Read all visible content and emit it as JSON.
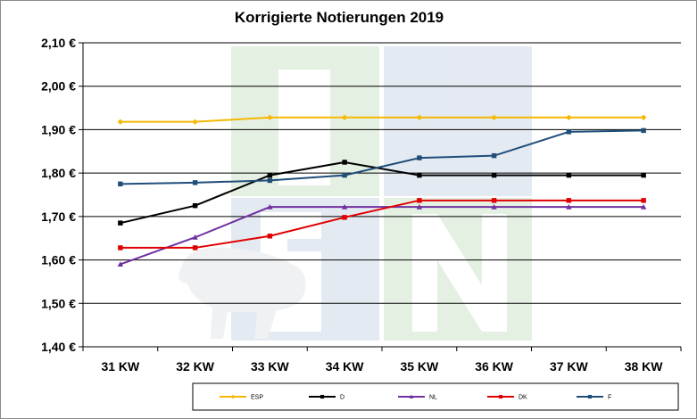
{
  "chart_data": {
    "type": "line",
    "title": "Korrigierte Notierungen 2019",
    "categories": [
      "31 KW",
      "32 KW",
      "33 KW",
      "34 KW",
      "35 KW",
      "36 KW",
      "37 KW",
      "38 KW"
    ],
    "ylim": [
      1.4,
      2.1
    ],
    "yticks": [
      "2,10 €",
      "2,00 €",
      "1,90 €",
      "1,80 €",
      "1,70 €",
      "1,60 €",
      "1,50 €",
      "1,40 €"
    ],
    "grid": true,
    "legend": "bottom",
    "series": [
      {
        "name": "ESP",
        "color": "#f5b800",
        "marker": "diamond",
        "values": [
          1.918,
          1.918,
          1.928,
          1.928,
          1.928,
          1.928,
          1.928,
          1.928
        ]
      },
      {
        "name": "D",
        "color": "#000000",
        "marker": "square",
        "values": [
          1.685,
          1.725,
          1.795,
          1.825,
          1.795,
          1.795,
          1.795,
          1.795
        ]
      },
      {
        "name": "NL",
        "color": "#7030a0",
        "marker": "triangle",
        "values": [
          1.59,
          1.652,
          1.722,
          1.722,
          1.722,
          1.722,
          1.722,
          1.722
        ]
      },
      {
        "name": "DK",
        "color": "#e00000",
        "marker": "square",
        "values": [
          1.628,
          1.628,
          1.655,
          1.698,
          1.737,
          1.737,
          1.737,
          1.737
        ]
      },
      {
        "name": "F",
        "color": "#1f4e79",
        "marker": "square",
        "values": [
          1.775,
          1.778,
          1.783,
          1.795,
          1.835,
          1.84,
          1.895,
          1.898
        ]
      }
    ]
  }
}
